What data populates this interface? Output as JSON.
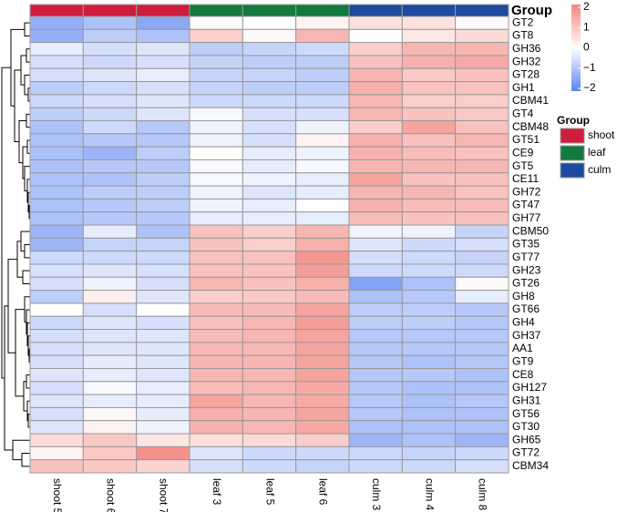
{
  "chart_data": {
    "type": "heatmap",
    "rows": [
      "GT2",
      "GT8",
      "GH36",
      "GH32",
      "GT28",
      "GH1",
      "CBM41",
      "GT4",
      "CBM48",
      "GT51",
      "CE9",
      "GT5",
      "CE11",
      "GH72",
      "GT47",
      "GH77",
      "CBM50",
      "GT35",
      "GT77",
      "GH23",
      "GT26",
      "GH8",
      "GT66",
      "GH4",
      "GH37",
      "AA1",
      "GT9",
      "CE8",
      "GH127",
      "GH31",
      "GT56",
      "GT30",
      "GH65",
      "GT72",
      "CBM34"
    ],
    "columns": [
      "shoot 5",
      "shoot 6",
      "shoot 7",
      "leaf 3",
      "leaf 5",
      "leaf 6",
      "culm 3",
      "culm 4",
      "culm 8"
    ],
    "values": [
      [
        -1.3,
        -1.0,
        -1.4,
        0.1,
        0.0,
        0.2,
        0.5,
        0.5,
        0.1
      ],
      [
        -1.3,
        -0.8,
        -1.0,
        0.8,
        0.1,
        1.2,
        0.0,
        0.4,
        0.6
      ],
      [
        -0.3,
        -0.5,
        -0.4,
        -0.8,
        -0.7,
        -0.6,
        0.8,
        1.2,
        1.2
      ],
      [
        -0.5,
        -0.6,
        -0.5,
        -0.7,
        -0.8,
        -0.8,
        1.0,
        1.3,
        1.4
      ],
      [
        -0.5,
        -0.4,
        -0.3,
        -0.7,
        -0.7,
        -0.8,
        1.2,
        0.9,
        1.0
      ],
      [
        -0.8,
        -0.6,
        -0.5,
        -0.7,
        -0.8,
        -0.8,
        1.3,
        1.0,
        1.0
      ],
      [
        -0.6,
        -0.5,
        -0.4,
        -0.6,
        -0.6,
        -0.6,
        1.2,
        0.8,
        0.8
      ],
      [
        -0.8,
        -0.6,
        -0.4,
        -0.1,
        -0.5,
        -0.5,
        1.2,
        1.0,
        0.9
      ],
      [
        -1.0,
        -0.6,
        -0.9,
        -0.2,
        -0.5,
        -0.2,
        0.8,
        1.5,
        1.0
      ],
      [
        -1.0,
        -0.9,
        -0.9,
        -0.2,
        -0.5,
        0.2,
        1.3,
        1.0,
        1.2
      ],
      [
        -1.0,
        -1.2,
        -0.8,
        0.0,
        -0.3,
        -0.2,
        1.3,
        1.1,
        1.0
      ],
      [
        -1.0,
        -0.9,
        -0.9,
        -0.1,
        -0.3,
        -0.1,
        1.2,
        1.2,
        1.2
      ],
      [
        -1.0,
        -1.0,
        -0.8,
        -0.1,
        -0.2,
        -0.3,
        1.5,
        1.0,
        1.0
      ],
      [
        -1.0,
        -0.8,
        -0.8,
        -0.2,
        -0.4,
        -0.3,
        1.2,
        1.2,
        1.0
      ],
      [
        -1.0,
        -0.9,
        -0.8,
        -0.2,
        -0.3,
        0.0,
        1.3,
        1.1,
        1.1
      ],
      [
        -1.0,
        -0.9,
        -0.9,
        -0.3,
        -0.3,
        -0.3,
        1.1,
        1.0,
        1.0
      ],
      [
        -1.2,
        -0.3,
        -1.0,
        1.0,
        0.8,
        1.2,
        -0.2,
        -0.2,
        -0.7
      ],
      [
        -1.2,
        -0.7,
        -0.7,
        1.0,
        0.8,
        1.3,
        -0.4,
        -0.6,
        -0.5
      ],
      [
        -0.6,
        -0.6,
        -0.6,
        1.0,
        1.0,
        1.7,
        -0.5,
        -0.6,
        -0.7
      ],
      [
        -0.5,
        -0.4,
        -0.5,
        1.0,
        1.0,
        1.6,
        -0.6,
        -0.6,
        -0.6
      ],
      [
        -0.5,
        -0.2,
        -0.5,
        1.2,
        1.0,
        1.3,
        -1.5,
        -1.0,
        0.1
      ],
      [
        -0.8,
        0.3,
        -0.4,
        0.8,
        0.9,
        1.1,
        -1.0,
        -0.9,
        -0.3
      ],
      [
        0.0,
        -0.5,
        0.0,
        1.1,
        1.1,
        1.5,
        -0.8,
        -0.8,
        -0.9
      ],
      [
        -0.6,
        -0.4,
        -0.5,
        1.0,
        1.2,
        1.6,
        -0.8,
        -0.8,
        -0.9
      ],
      [
        -0.5,
        -0.4,
        -0.4,
        1.1,
        1.2,
        1.5,
        -0.9,
        -0.9,
        -0.9
      ],
      [
        -0.5,
        -0.4,
        -0.4,
        1.2,
        1.2,
        1.5,
        -0.9,
        -0.9,
        -0.9
      ],
      [
        -0.5,
        -0.3,
        -0.4,
        1.2,
        1.2,
        1.5,
        -0.9,
        -1.0,
        -0.9
      ],
      [
        -0.4,
        -0.3,
        -0.4,
        1.2,
        1.2,
        1.5,
        -0.9,
        -0.9,
        -1.0
      ],
      [
        -0.5,
        -0.1,
        -0.3,
        1.1,
        1.2,
        1.4,
        -0.9,
        -1.0,
        -1.0
      ],
      [
        -0.4,
        -0.3,
        -0.3,
        1.5,
        1.2,
        1.4,
        -0.9,
        -1.0,
        -0.9
      ],
      [
        -0.5,
        0.1,
        -0.3,
        1.3,
        1.2,
        1.5,
        -0.9,
        -1.0,
        -1.0
      ],
      [
        -0.4,
        0.2,
        -0.2,
        1.3,
        1.2,
        1.4,
        -1.0,
        -1.0,
        -1.0
      ],
      [
        0.6,
        0.9,
        0.4,
        0.5,
        0.6,
        0.8,
        -1.2,
        -1.0,
        -1.2
      ],
      [
        0.2,
        0.9,
        1.8,
        -0.4,
        -0.6,
        -0.6,
        -0.6,
        -0.7,
        -0.6
      ],
      [
        1.0,
        0.9,
        0.7,
        -0.5,
        -0.6,
        -0.7,
        -0.6,
        -0.6,
        -0.5
      ]
    ],
    "colorscale": {
      "colors": [
        "#5b84f2",
        "#ffffff",
        "#f3857e"
      ],
      "lim": [
        -2,
        2
      ],
      "ticks": [
        2,
        1,
        0,
        {
          "value": -1,
          "label": "−1"
        },
        {
          "value": -2,
          "label": "−2"
        }
      ]
    },
    "annotation": {
      "title": "Group",
      "groups": [
        {
          "name": "shoot",
          "color": "#cf1e3d"
        },
        {
          "name": "leaf",
          "color": "#137a3f"
        },
        {
          "name": "culm",
          "color": "#1c4a9d"
        }
      ],
      "column_group": [
        0,
        0,
        0,
        1,
        1,
        1,
        2,
        2,
        2
      ]
    }
  }
}
